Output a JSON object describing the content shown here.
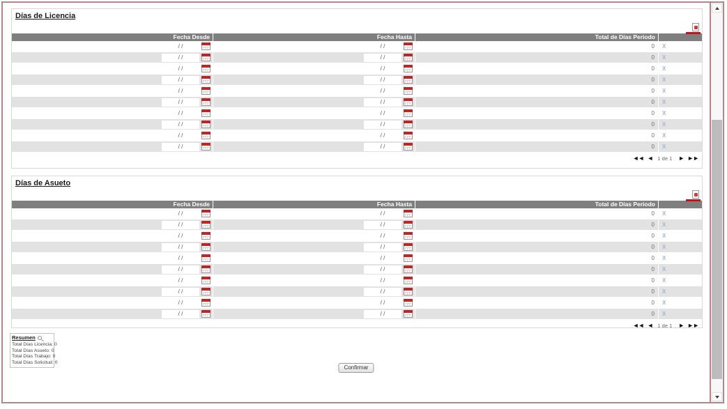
{
  "sections": [
    {
      "title": "Días de Licencia",
      "columns": {
        "fecha_desde": "Fecha Desde",
        "fecha_hasta": "Fecha Hasta",
        "total": "Total de Días Periodo"
      },
      "rows": [
        {
          "fecha_desde": "/ /",
          "fecha_hasta": "/ /",
          "total": "0",
          "delete_label": "X"
        },
        {
          "fecha_desde": "/ /",
          "fecha_hasta": "/ /",
          "total": "0",
          "delete_label": "X"
        },
        {
          "fecha_desde": "/ /",
          "fecha_hasta": "/ /",
          "total": "0",
          "delete_label": "X"
        },
        {
          "fecha_desde": "/ /",
          "fecha_hasta": "/ /",
          "total": "0",
          "delete_label": "X"
        },
        {
          "fecha_desde": "/ /",
          "fecha_hasta": "/ /",
          "total": "0",
          "delete_label": "X"
        },
        {
          "fecha_desde": "/ /",
          "fecha_hasta": "/ /",
          "total": "0",
          "delete_label": "X"
        },
        {
          "fecha_desde": "/ /",
          "fecha_hasta": "/ /",
          "total": "0",
          "delete_label": "X"
        },
        {
          "fecha_desde": "/ /",
          "fecha_hasta": "/ /",
          "total": "0",
          "delete_label": "X"
        },
        {
          "fecha_desde": "/ /",
          "fecha_hasta": "/ /",
          "total": "0",
          "delete_label": "X"
        },
        {
          "fecha_desde": "/ /",
          "fecha_hasta": "/ /",
          "total": "0",
          "delete_label": "X"
        }
      ],
      "pagination": {
        "first_icon": "◄◄",
        "prev_icon": "◄",
        "label": "1 de 1",
        "next_icon": "►",
        "last_icon": "►►"
      }
    },
    {
      "title": "Días de Asueto",
      "columns": {
        "fecha_desde": "Fecha Desde",
        "fecha_hasta": "Fecha Hasta",
        "total": "Total de Días Periodo"
      },
      "rows": [
        {
          "fecha_desde": "/ /",
          "fecha_hasta": "/ /",
          "total": "0",
          "delete_label": "X"
        },
        {
          "fecha_desde": "/ /",
          "fecha_hasta": "/ /",
          "total": "0",
          "delete_label": "X"
        },
        {
          "fecha_desde": "/ /",
          "fecha_hasta": "/ /",
          "total": "0",
          "delete_label": "X"
        },
        {
          "fecha_desde": "/ /",
          "fecha_hasta": "/ /",
          "total": "0",
          "delete_label": "X"
        },
        {
          "fecha_desde": "/ /",
          "fecha_hasta": "/ /",
          "total": "0",
          "delete_label": "X"
        },
        {
          "fecha_desde": "/ /",
          "fecha_hasta": "/ /",
          "total": "0",
          "delete_label": "X"
        },
        {
          "fecha_desde": "/ /",
          "fecha_hasta": "/ /",
          "total": "0",
          "delete_label": "X"
        },
        {
          "fecha_desde": "/ /",
          "fecha_hasta": "/ /",
          "total": "0",
          "delete_label": "X"
        },
        {
          "fecha_desde": "/ /",
          "fecha_hasta": "/ /",
          "total": "0",
          "delete_label": "X"
        },
        {
          "fecha_desde": "/ /",
          "fecha_hasta": "/ /",
          "total": "0",
          "delete_label": "X"
        }
      ],
      "pagination": {
        "first_icon": "◄◄",
        "prev_icon": "◄",
        "label": "1 de 1",
        "next_icon": "►",
        "last_icon": "►►"
      }
    }
  ],
  "resumen": {
    "title": "Resumen",
    "items": [
      {
        "label": "Total Días Licencia:",
        "value": "0"
      },
      {
        "label": "Total Días Asueto:",
        "value": "0"
      },
      {
        "label": "Total Días Trabajo:",
        "value": "0"
      },
      {
        "label": "Total Días Solicitud:",
        "value": "0"
      }
    ]
  },
  "confirm_label": "Confirmar",
  "colors": {
    "accent_red": "#c21414",
    "header_gray": "#7f7f7f",
    "row_alt": "#e2e2e2",
    "frame_border": "#b18787",
    "link_blue": "#9fb6d4"
  }
}
